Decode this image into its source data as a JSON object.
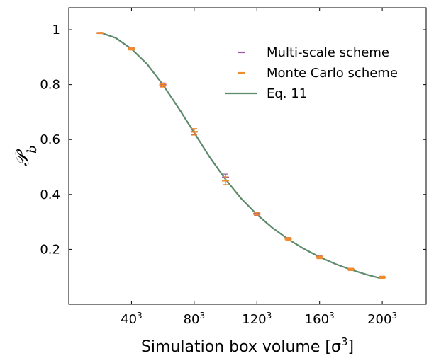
{
  "chart_data": {
    "type": "scatter",
    "title": "",
    "xlabel": "Simulation box volume [σ³]",
    "ylabel": "𝒫_b",
    "xlim": [
      0,
      228
    ],
    "ylim": [
      0,
      1.08
    ],
    "x_ticks": [
      {
        "value": 40,
        "label": "40³"
      },
      {
        "value": 80,
        "label": "80³"
      },
      {
        "value": 120,
        "label": "120³"
      },
      {
        "value": 160,
        "label": "160³"
      },
      {
        "value": 200,
        "label": "200³"
      }
    ],
    "y_ticks": [
      {
        "value": 0.2,
        "label": "0.2"
      },
      {
        "value": 0.4,
        "label": "0.4"
      },
      {
        "value": 0.6,
        "label": "0.6"
      },
      {
        "value": 0.8,
        "label": "0.8"
      },
      {
        "value": 1.0,
        "label": "1"
      }
    ],
    "legend_position": "top-right",
    "series": [
      {
        "name": "Multi-scale scheme",
        "kind": "errorbar",
        "color": "#9b59a6",
        "points": [
          {
            "x": 20,
            "y": 0.988,
            "err": 0.002
          },
          {
            "x": 40,
            "y": 0.932,
            "err": 0.004
          },
          {
            "x": 60,
            "y": 0.8,
            "err": 0.006
          },
          {
            "x": 80,
            "y": 0.628,
            "err": 0.01
          },
          {
            "x": 100,
            "y": 0.462,
            "err": 0.012
          },
          {
            "x": 120,
            "y": 0.33,
            "err": 0.006
          },
          {
            "x": 140,
            "y": 0.238,
            "err": 0.005
          },
          {
            "x": 160,
            "y": 0.172,
            "err": 0.005
          },
          {
            "x": 180,
            "y": 0.127,
            "err": 0.004
          },
          {
            "x": 200,
            "y": 0.098,
            "err": 0.004
          }
        ]
      },
      {
        "name": "Monte Carlo scheme",
        "kind": "errorbar",
        "color": "#f28c28",
        "points": [
          {
            "x": 20,
            "y": 0.988,
            "err": 0.002
          },
          {
            "x": 40,
            "y": 0.93,
            "err": 0.004
          },
          {
            "x": 60,
            "y": 0.797,
            "err": 0.006
          },
          {
            "x": 80,
            "y": 0.628,
            "err": 0.012
          },
          {
            "x": 100,
            "y": 0.45,
            "err": 0.014
          },
          {
            "x": 120,
            "y": 0.328,
            "err": 0.006
          },
          {
            "x": 140,
            "y": 0.238,
            "err": 0.005
          },
          {
            "x": 160,
            "y": 0.172,
            "err": 0.006
          },
          {
            "x": 180,
            "y": 0.127,
            "err": 0.004
          },
          {
            "x": 200,
            "y": 0.098,
            "err": 0.004
          }
        ]
      },
      {
        "name": "Eq. 11",
        "kind": "line",
        "color": "#5c8a6a",
        "points": [
          {
            "x": 20,
            "y": 0.99
          },
          {
            "x": 30,
            "y": 0.97
          },
          {
            "x": 40,
            "y": 0.93
          },
          {
            "x": 50,
            "y": 0.875
          },
          {
            "x": 60,
            "y": 0.8
          },
          {
            "x": 70,
            "y": 0.715
          },
          {
            "x": 80,
            "y": 0.625
          },
          {
            "x": 90,
            "y": 0.535
          },
          {
            "x": 100,
            "y": 0.455
          },
          {
            "x": 110,
            "y": 0.385
          },
          {
            "x": 120,
            "y": 0.327
          },
          {
            "x": 130,
            "y": 0.278
          },
          {
            "x": 140,
            "y": 0.237
          },
          {
            "x": 150,
            "y": 0.202
          },
          {
            "x": 160,
            "y": 0.172
          },
          {
            "x": 170,
            "y": 0.147
          },
          {
            "x": 180,
            "y": 0.126
          },
          {
            "x": 190,
            "y": 0.108
          },
          {
            "x": 200,
            "y": 0.093
          }
        ]
      }
    ]
  }
}
